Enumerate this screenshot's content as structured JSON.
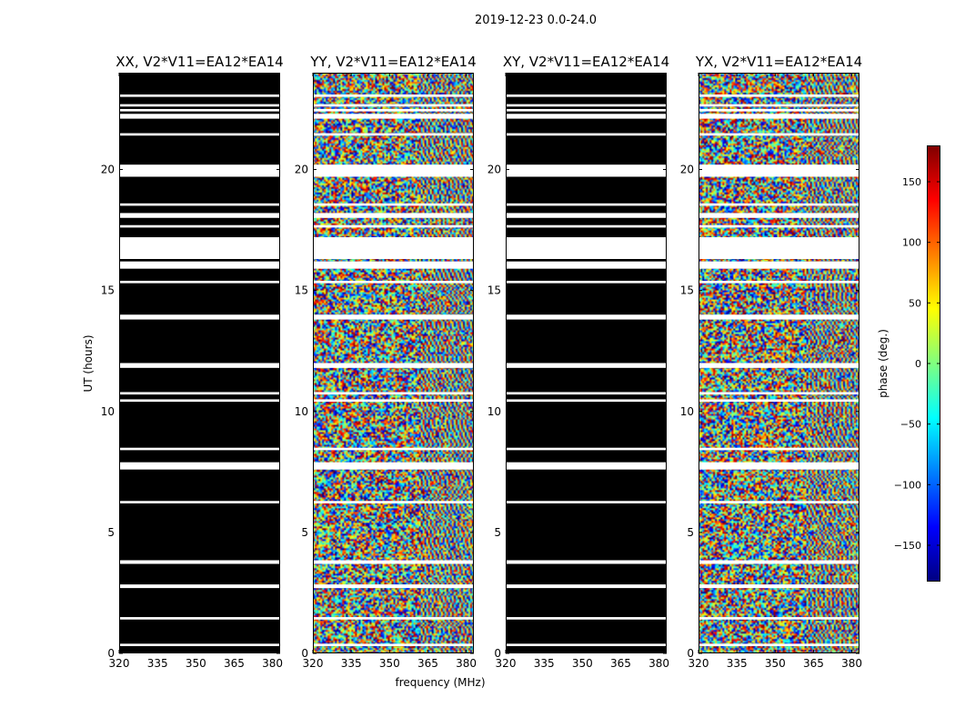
{
  "figure": {
    "suptitle": "2019-12-23 0.0-24.0",
    "xlabel": "frequency (MHz)",
    "ylabel": "UT (hours)"
  },
  "colorbar": {
    "label": "phase (deg.)",
    "ticks": [
      150,
      100,
      50,
      0,
      -50,
      -100,
      -150
    ],
    "tick_labels": [
      "150",
      "100",
      "50",
      "0",
      "−50",
      "−100",
      "−150"
    ],
    "range": [
      -180,
      180
    ],
    "colormap": [
      "#00007f",
      "#0000ff",
      "#007fff",
      "#00ffff",
      "#7fff7f",
      "#ffff00",
      "#ff7f00",
      "#ff0000",
      "#7f0000"
    ]
  },
  "chart_data": [
    {
      "type": "heatmap",
      "title": "XX, V2*V11=EA12*EA14",
      "x_ticks": [
        320,
        335,
        350,
        365,
        380
      ],
      "y_ticks": [
        0,
        5,
        10,
        15,
        20
      ],
      "xlim": [
        320,
        383
      ],
      "ylim": [
        0,
        24
      ],
      "fill": "black",
      "blank_intervals_hours": [
        [
          0.3,
          0.4
        ],
        [
          1.4,
          1.5
        ],
        [
          2.7,
          2.85
        ],
        [
          3.7,
          3.85
        ],
        [
          6.2,
          6.3
        ],
        [
          7.6,
          7.9
        ],
        [
          8.4,
          8.5
        ],
        [
          10.4,
          10.5
        ],
        [
          10.7,
          10.8
        ],
        [
          11.8,
          12.0
        ],
        [
          13.8,
          14.0
        ],
        [
          15.3,
          15.4
        ],
        [
          15.9,
          16.2
        ],
        [
          16.3,
          17.2
        ],
        [
          17.6,
          17.7
        ],
        [
          18.0,
          18.2
        ],
        [
          18.5,
          18.6
        ],
        [
          19.7,
          20.2
        ],
        [
          21.4,
          21.5
        ],
        [
          22.1,
          22.3
        ],
        [
          22.4,
          22.5
        ],
        [
          22.6,
          22.7
        ],
        [
          23.0,
          23.1
        ]
      ]
    },
    {
      "type": "heatmap",
      "title": "YY, V2*V11=EA12*EA14",
      "x_ticks": [
        320,
        335,
        350,
        365,
        380
      ],
      "y_ticks": [
        0,
        5,
        10,
        15,
        20
      ],
      "xlim": [
        320,
        383
      ],
      "ylim": [
        0,
        24
      ],
      "fill": "phase",
      "blank_intervals_hours": [
        [
          0.3,
          0.4
        ],
        [
          1.4,
          1.5
        ],
        [
          2.7,
          2.85
        ],
        [
          3.7,
          3.85
        ],
        [
          6.2,
          6.3
        ],
        [
          7.6,
          7.9
        ],
        [
          8.4,
          8.5
        ],
        [
          10.4,
          10.5
        ],
        [
          10.7,
          10.8
        ],
        [
          11.8,
          12.0
        ],
        [
          13.8,
          14.0
        ],
        [
          15.3,
          15.4
        ],
        [
          15.9,
          16.2
        ],
        [
          16.3,
          17.2
        ],
        [
          17.6,
          17.7
        ],
        [
          18.0,
          18.2
        ],
        [
          18.5,
          18.6
        ],
        [
          19.7,
          20.2
        ],
        [
          21.4,
          21.5
        ],
        [
          22.1,
          22.3
        ],
        [
          22.4,
          22.5
        ],
        [
          22.6,
          22.7
        ],
        [
          23.0,
          23.1
        ]
      ]
    },
    {
      "type": "heatmap",
      "title": "XY, V2*V11=EA12*EA14",
      "x_ticks": [
        320,
        335,
        350,
        365,
        380
      ],
      "y_ticks": [
        0,
        5,
        10,
        15,
        20
      ],
      "xlim": [
        320,
        383
      ],
      "ylim": [
        0,
        24
      ],
      "fill": "black",
      "blank_intervals_hours": [
        [
          0.3,
          0.4
        ],
        [
          1.4,
          1.5
        ],
        [
          2.7,
          2.85
        ],
        [
          3.7,
          3.85
        ],
        [
          6.2,
          6.3
        ],
        [
          7.6,
          7.9
        ],
        [
          8.4,
          8.5
        ],
        [
          10.4,
          10.5
        ],
        [
          10.7,
          10.8
        ],
        [
          11.8,
          12.0
        ],
        [
          13.8,
          14.0
        ],
        [
          15.3,
          15.4
        ],
        [
          15.9,
          16.2
        ],
        [
          16.3,
          17.2
        ],
        [
          17.6,
          17.7
        ],
        [
          18.0,
          18.2
        ],
        [
          18.5,
          18.6
        ],
        [
          19.7,
          20.2
        ],
        [
          21.4,
          21.5
        ],
        [
          22.1,
          22.3
        ],
        [
          22.4,
          22.5
        ],
        [
          22.6,
          22.7
        ],
        [
          23.0,
          23.1
        ]
      ]
    },
    {
      "type": "heatmap",
      "title": "YX, V2*V11=EA12*EA14",
      "x_ticks": [
        320,
        335,
        350,
        365,
        380
      ],
      "y_ticks": [
        0,
        5,
        10,
        15,
        20
      ],
      "xlim": [
        320,
        383
      ],
      "ylim": [
        0,
        24
      ],
      "fill": "phase",
      "blank_intervals_hours": [
        [
          0.3,
          0.4
        ],
        [
          1.4,
          1.5
        ],
        [
          2.7,
          2.85
        ],
        [
          3.7,
          3.85
        ],
        [
          6.2,
          6.3
        ],
        [
          7.6,
          7.9
        ],
        [
          8.4,
          8.5
        ],
        [
          10.4,
          10.5
        ],
        [
          10.7,
          10.8
        ],
        [
          11.8,
          12.0
        ],
        [
          13.8,
          14.0
        ],
        [
          15.3,
          15.4
        ],
        [
          15.9,
          16.2
        ],
        [
          16.3,
          17.2
        ],
        [
          17.6,
          17.7
        ],
        [
          18.0,
          18.2
        ],
        [
          18.5,
          18.6
        ],
        [
          19.7,
          20.2
        ],
        [
          21.4,
          21.5
        ],
        [
          22.1,
          22.3
        ],
        [
          22.4,
          22.5
        ],
        [
          22.6,
          22.7
        ],
        [
          23.0,
          23.1
        ]
      ]
    }
  ]
}
